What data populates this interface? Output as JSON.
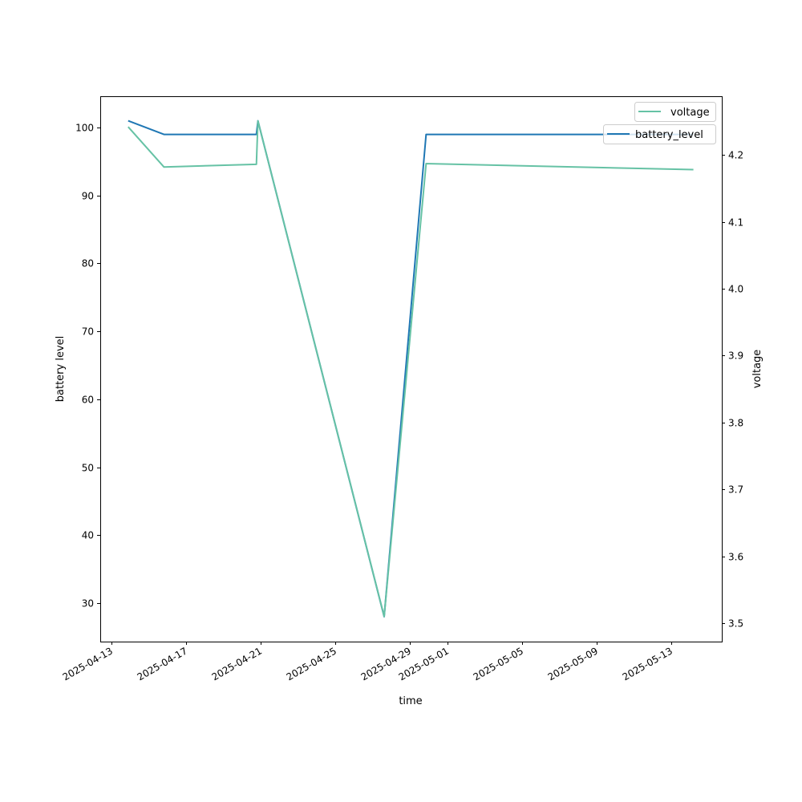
{
  "chart_data": {
    "type": "line",
    "xlabel": "time",
    "ylabel_left": "battery level",
    "ylabel_right": "voltage",
    "x_ticks": [
      "2025-04-13",
      "2025-04-17",
      "2025-04-21",
      "2025-04-25",
      "2025-04-29",
      "2025-05-01",
      "2025-05-05",
      "2025-05-09",
      "2025-05-13"
    ],
    "ylim_left": [
      24.5,
      104.5
    ],
    "yticks_left": [
      30,
      40,
      50,
      60,
      70,
      80,
      90,
      100
    ],
    "ylim_right": [
      3.48,
      4.29
    ],
    "yticks_right": [
      "3.5",
      "3.6",
      "3.7",
      "3.8",
      "3.9",
      "4.0",
      "4.1",
      "4.2"
    ],
    "xlim": [
      "2025-04-12T09:30",
      "2025-05-15T06:00"
    ],
    "grid": false,
    "series": [
      {
        "name": "battery_level",
        "axis": "left",
        "color": "#1f77b4",
        "x": [
          "2025-04-13T21:30",
          "2025-04-15T19:30",
          "2025-04-20T18:30",
          "2025-04-20T20:30",
          "2025-04-27T15:00",
          "2025-04-29T21:00",
          "2025-05-14T05:00"
        ],
        "values": [
          101,
          99,
          99,
          101,
          28,
          99,
          99
        ]
      },
      {
        "name": "voltage",
        "axis": "right",
        "color": "#66c2a5",
        "x": [
          "2025-04-13T21:30",
          "2025-04-15T19:30",
          "2025-04-20T18:30",
          "2025-04-20T20:30",
          "2025-04-27T15:00",
          "2025-04-29T21:00",
          "2025-05-14T05:00"
        ],
        "values": [
          4.242,
          4.182,
          4.186,
          4.251,
          3.51,
          4.187,
          4.178
        ]
      }
    ],
    "legends": [
      {
        "label": "battery_level",
        "placement": "upper-right"
      },
      {
        "label": "voltage",
        "placement": "upper-right"
      }
    ]
  }
}
